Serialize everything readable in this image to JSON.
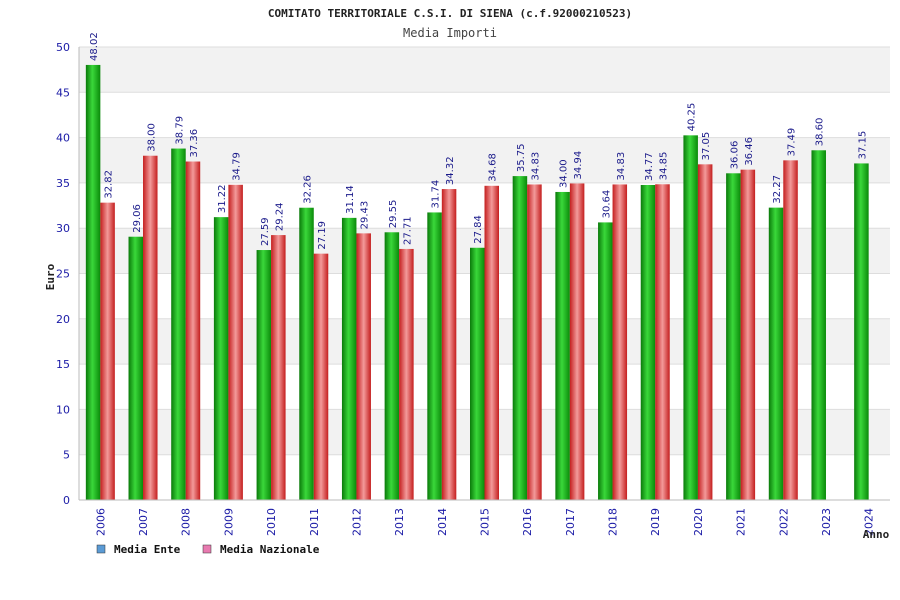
{
  "chart_data": {
    "type": "bar",
    "title": "COMITATO TERRITORIALE C.S.I. DI SIENA (c.f.92000210523)",
    "subtitle": "Media Importi",
    "xlabel": "Anno",
    "ylabel": "Euro",
    "ylim": [
      0,
      50
    ],
    "yticks": [
      0,
      5,
      10,
      15,
      20,
      25,
      30,
      35,
      40,
      45,
      50
    ],
    "categories": [
      "2006",
      "2007",
      "2008",
      "2009",
      "2010",
      "2011",
      "2012",
      "2013",
      "2014",
      "2015",
      "2016",
      "2017",
      "2018",
      "2019",
      "2020",
      "2021",
      "2022",
      "2023",
      "2024"
    ],
    "series": [
      {
        "name": "Media Ente",
        "color": "#1fbf1f",
        "legend_color": "#5b9bd5",
        "values": [
          48.02,
          29.06,
          38.79,
          31.22,
          27.59,
          32.26,
          31.14,
          29.55,
          31.74,
          27.84,
          35.75,
          34.0,
          30.64,
          34.77,
          40.25,
          36.06,
          32.27,
          38.6,
          37.15
        ],
        "labels": [
          "48.02",
          "29.06",
          "38.79",
          "31.22",
          "27.59",
          "32.26",
          "31.14",
          "29.55",
          "31.74",
          "27.84",
          "35.75",
          "34.00",
          "30.64",
          "34.77",
          "40.25",
          "36.06",
          "32.27",
          "38.60",
          "37.15"
        ]
      },
      {
        "name": "Media Nazionale",
        "color": "#e23a3a",
        "legend_color": "#e87ab0",
        "values": [
          32.82,
          38.0,
          37.36,
          34.79,
          29.24,
          27.19,
          29.43,
          27.71,
          34.32,
          34.68,
          34.83,
          34.94,
          34.83,
          34.85,
          37.05,
          36.46,
          37.49,
          null,
          null
        ],
        "labels": [
          "32.82",
          "38.00",
          "37.36",
          "34.79",
          "29.24",
          "27.19",
          "29.43",
          "27.71",
          "34.32",
          "34.68",
          "34.83",
          "34.94",
          "34.83",
          "34.85",
          "37.05",
          "36.46",
          "37.49",
          null,
          null
        ]
      }
    ],
    "grid": true,
    "legend_position": "bottom-left"
  }
}
